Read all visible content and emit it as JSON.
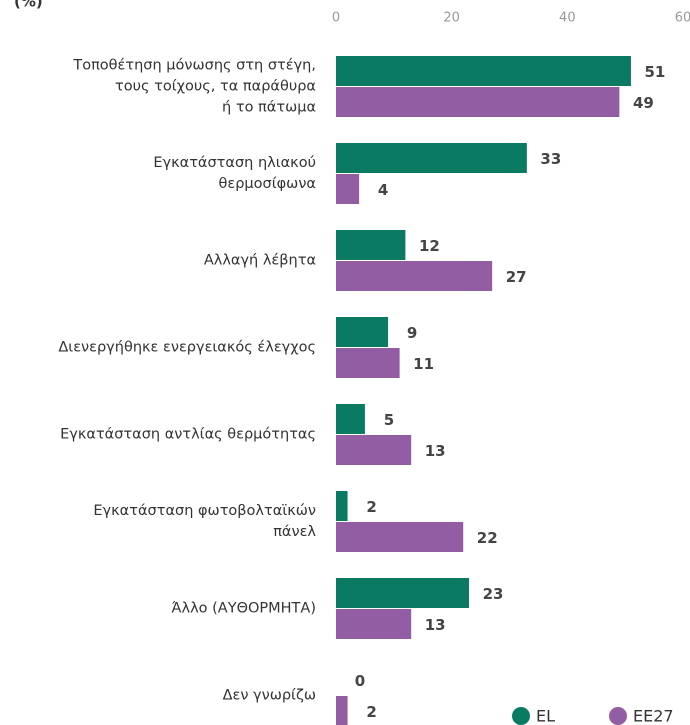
{
  "chart_data": {
    "type": "bar",
    "title": "(%)",
    "categories": [
      "Τοποθέτηση μόνωσης στη στέγη,\nτους τοίχους, τα παράθυρα\nή το πάτωμα",
      "Εγκατάσταση ηλιακού\nθερμοσίφωνα",
      "Αλλαγή λέβητα",
      "Διενεργήθηκε ενεργειακός έλεγχος",
      "Εγκατάσταση αντλίας θερμότητας",
      "Εγκατάσταση φωτοβολταϊκών\nπάνελ",
      "Άλλο (ΑΥΘΟΡΜΗΤΑ)",
      "Δεν γνωρίζω"
    ],
    "series": [
      {
        "name": "EL",
        "color": "#0b7a62",
        "values": [
          51,
          33,
          12,
          9,
          5,
          2,
          23,
          0
        ]
      },
      {
        "name": "ΕΕ27",
        "color": "#925da2",
        "values": [
          49,
          4,
          27,
          11,
          13,
          22,
          13,
          2
        ]
      }
    ],
    "xlim": [
      0,
      60
    ],
    "xticks": [
      0,
      20,
      40,
      60
    ]
  }
}
